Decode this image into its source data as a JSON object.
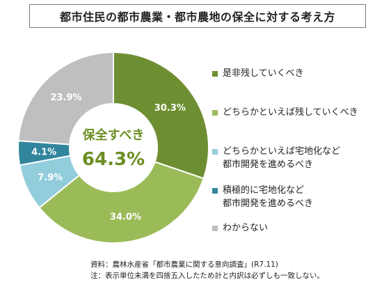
{
  "title": "都市住民の都市農業・都市農地の保全に対する考え方",
  "chart_data": {
    "type": "pie",
    "variant": "donut",
    "center_label": "保全すべき",
    "center_value": "64.3%",
    "slices": [
      {
        "label": "是非残していくべき",
        "value": 30.3,
        "display": "30.3%",
        "color": "#6e8e32"
      },
      {
        "label": "どちらかといえば残していくべき",
        "value": 34.0,
        "display": "34.0%",
        "color": "#9bbb59"
      },
      {
        "label": "どちらかといえば宅地化など都市開発を進めるべき",
        "value": 7.9,
        "display": "7.9%",
        "color": "#92cddc"
      },
      {
        "label": "積極的に宅地化など都市開発を進めるべき",
        "value": 4.1,
        "display": "4.1%",
        "color": "#31859c"
      },
      {
        "label": "わからない",
        "value": 23.9,
        "display": "23.9%",
        "color": "#bfbfbf"
      }
    ],
    "legend_placement": "right"
  },
  "legend": [
    {
      "lines": [
        "是非残していくべき"
      ],
      "color": "#6e8e32"
    },
    {
      "lines": [
        "どちらかといえば残していくべき"
      ],
      "color": "#9bbb59"
    },
    {
      "lines": [
        "どちらかといえば宅地化など",
        "都市開発を進めるべき"
      ],
      "color": "#92cddc"
    },
    {
      "lines": [
        "積極的に宅地化など",
        "都市開発を進めるべき"
      ],
      "color": "#31859c"
    },
    {
      "lines": [
        "わからない"
      ],
      "color": "#bfbfbf"
    }
  ],
  "footnote": {
    "source": "資料：農林水産省「都市農業に関する意向調査」(R7.11)",
    "note": "注：表示単位未満を四捨五入したため計と内訳は必ずしも一致しない。"
  }
}
